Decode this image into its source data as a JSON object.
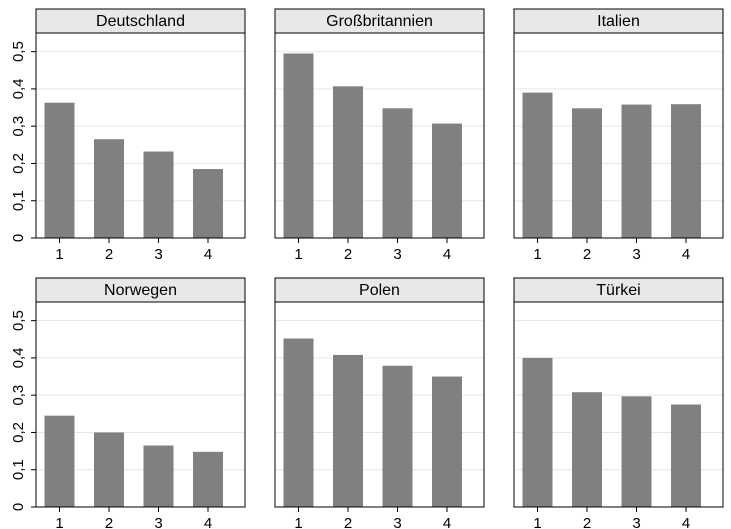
{
  "chart_data": {
    "type": "bar",
    "layout": "small-multiples",
    "rows": 2,
    "cols": 3,
    "categories": [
      "1",
      "2",
      "3",
      "4"
    ],
    "ylim": [
      0,
      0.55
    ],
    "yticks": [
      0,
      0.1,
      0.2,
      0.3,
      0.4,
      0.5
    ],
    "ytick_labels": [
      "0",
      "0,1",
      "0,2",
      "0,3",
      "0,4",
      "0,5"
    ],
    "grid": true,
    "bar_color": "#808080",
    "header_color": "#e8e8e8",
    "grid_color": "#e6e6e6",
    "panels": [
      {
        "title": "Deutschland",
        "values": [
          0.363,
          0.265,
          0.232,
          0.185
        ]
      },
      {
        "title": "Großbritannien",
        "values": [
          0.495,
          0.407,
          0.348,
          0.307
        ]
      },
      {
        "title": "Italien",
        "values": [
          0.39,
          0.348,
          0.358,
          0.359
        ]
      },
      {
        "title": "Norwegen",
        "values": [
          0.245,
          0.2,
          0.165,
          0.148
        ]
      },
      {
        "title": "Polen",
        "values": [
          0.452,
          0.408,
          0.379,
          0.35
        ]
      },
      {
        "title": "Türkei",
        "values": [
          0.4,
          0.308,
          0.297,
          0.275
        ]
      }
    ]
  }
}
